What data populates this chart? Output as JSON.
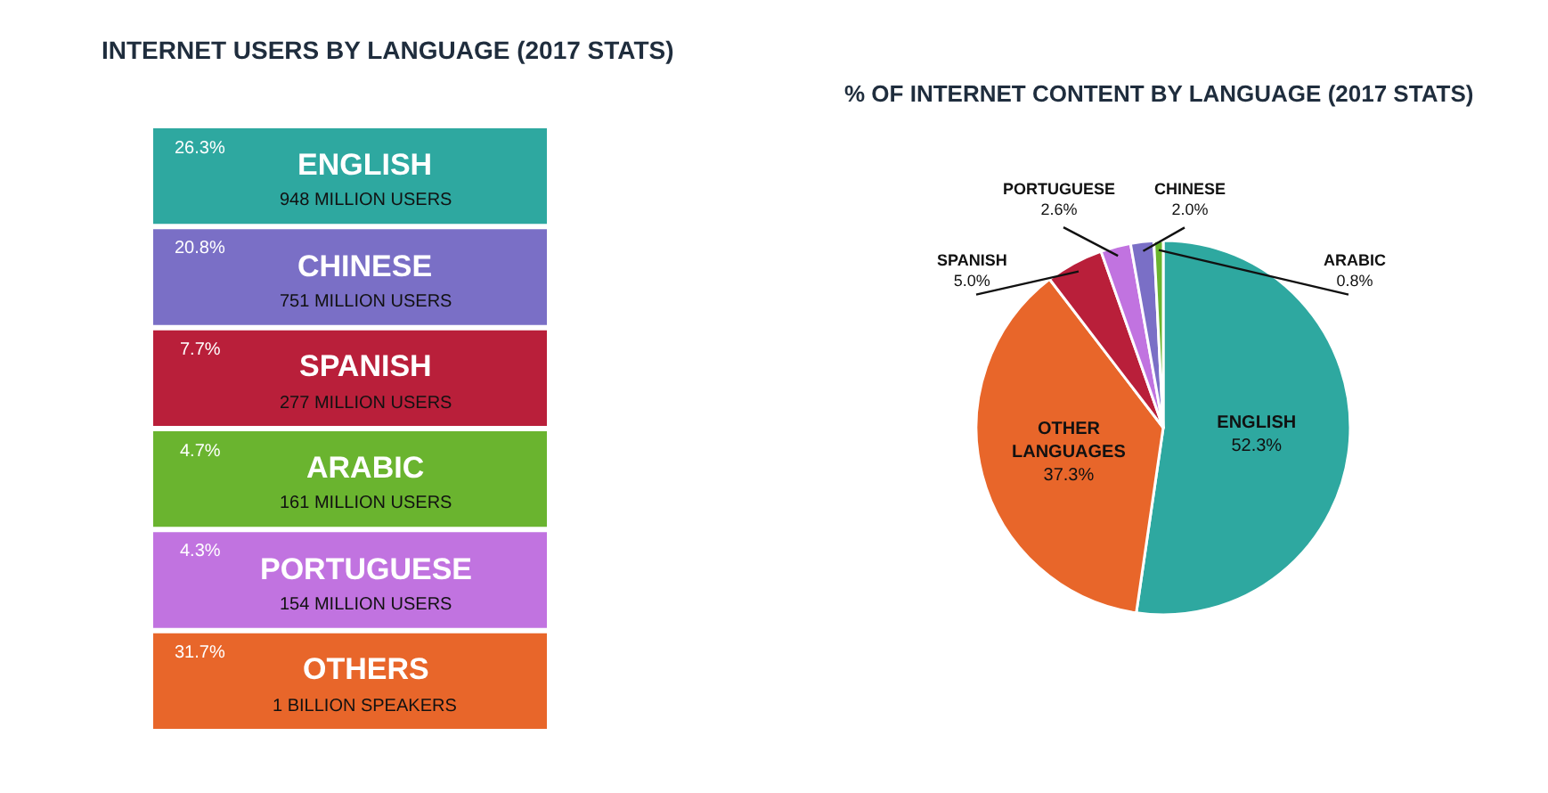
{
  "chart_data": [
    {
      "type": "other",
      "title": "INTERNET USERS BY LANGUAGE (2017 STATS)",
      "categories": [
        "ENGLISH",
        "CHINESE",
        "SPANISH",
        "ARABIC",
        "PORTUGUESE",
        "OTHERS"
      ],
      "value_labels": [
        "26.3%",
        "20.8%",
        "7.7%",
        "4.7%",
        "4.3%",
        "31.7%"
      ],
      "annotations": [
        "948 MILLION USERS",
        "751 MILLION USERS",
        "277 MILLION USERS",
        "161 MILLION USERS",
        "154 MILLION USERS",
        "1 BILLION SPEAKERS"
      ],
      "colors": [
        "#2ea8a0",
        "#7a6fc6",
        "#b91f3a",
        "#6ab42f",
        "#c173e0",
        "#e8662a"
      ]
    },
    {
      "type": "pie",
      "title": "% OF INTERNET CONTENT BY LANGUAGE (2017 STATS)",
      "categories": [
        "ENGLISH",
        "OTHER LANGUAGES",
        "SPANISH",
        "PORTUGUESE",
        "CHINESE",
        "ARABIC"
      ],
      "values": [
        52.3,
        37.3,
        5.0,
        2.6,
        2.0,
        0.8
      ],
      "value_labels": [
        "52.3%",
        "37.3%",
        "5.0%",
        "2.6%",
        "2.0%",
        "0.8%"
      ],
      "colors": [
        "#2ea8a0",
        "#e8662a",
        "#b91f3a",
        "#c173e0",
        "#7a6fc6",
        "#6ab42f"
      ]
    }
  ]
}
